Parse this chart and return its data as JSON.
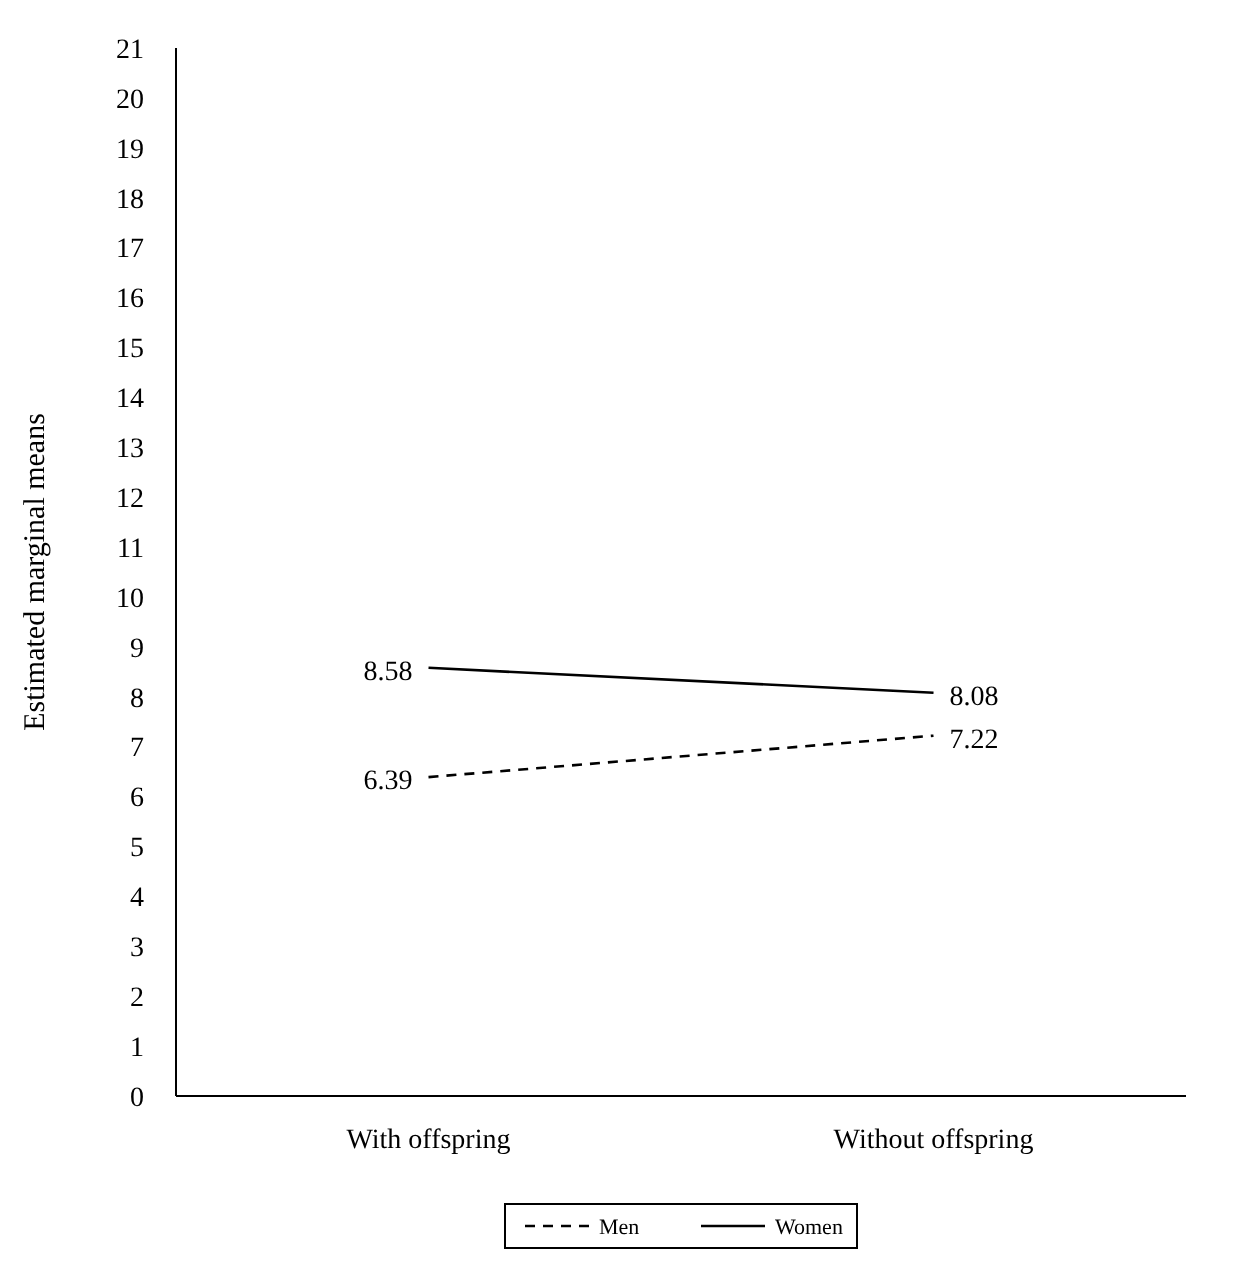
{
  "chart_data": {
    "type": "line",
    "ylabel": "Estimated marginal means",
    "categories": [
      "With offspring",
      "Without offspring"
    ],
    "series": [
      {
        "name": "Men",
        "color": "#000000",
        "values": [
          6.39,
          7.22
        ],
        "line_style": "dashed"
      },
      {
        "name": "Women",
        "color": "#000000",
        "values": [
          8.58,
          8.08
        ],
        "line_style": "solid"
      }
    ],
    "ylim": [
      0,
      21
    ],
    "yticks": [
      0,
      1,
      2,
      3,
      4,
      5,
      6,
      7,
      8,
      9,
      10,
      11,
      12,
      13,
      14,
      15,
      16,
      17,
      18,
      19,
      20,
      21
    ],
    "data_labels": true,
    "legend": "bottom",
    "marker": "none",
    "grid": false
  }
}
